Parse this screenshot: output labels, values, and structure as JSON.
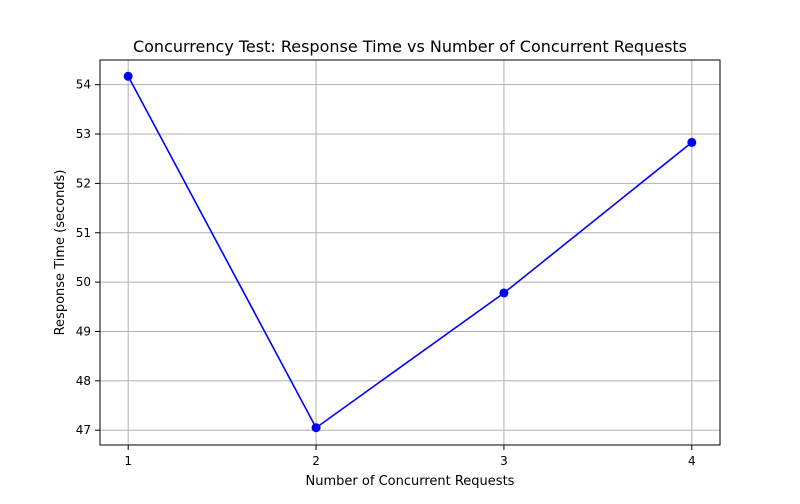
{
  "chart_data": {
    "type": "line",
    "title": "Concurrency Test: Response Time vs Number of Concurrent Requests",
    "xlabel": "Number of Concurrent Requests",
    "ylabel": "Response Time (seconds)",
    "x": [
      1,
      2,
      3,
      4
    ],
    "xticks": [
      "1",
      "2",
      "3",
      "4"
    ],
    "yticks": [
      "47",
      "48",
      "49",
      "50",
      "51",
      "52",
      "53",
      "54"
    ],
    "xlim": [
      0.85,
      4.15
    ],
    "ylim": [
      46.7,
      54.5
    ],
    "grid": true,
    "series": [
      {
        "values": [
          54.17,
          47.05,
          49.78,
          52.83
        ],
        "color": "#0000ff",
        "marker": "circle"
      }
    ]
  }
}
